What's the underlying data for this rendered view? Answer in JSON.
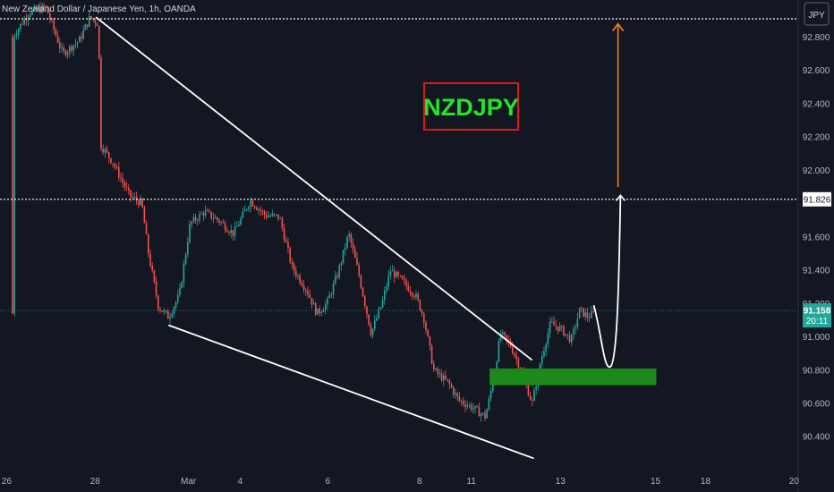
{
  "chart_data": {
    "type": "candlestick",
    "title": "New Zealand Dollar / Japanese Yen, 1h, OANDA",
    "currency_button": "JPY",
    "instrument_label": "NZDJPY",
    "y_ticks": [
      "92.800",
      "92.600",
      "92.400",
      "92.200",
      "92.000",
      "91.600",
      "91.400",
      "91.200",
      "91.000",
      "90.800",
      "90.600",
      "90.400"
    ],
    "x_ticks": [
      "26",
      "28",
      "Mar",
      "4",
      "6",
      "8",
      "11",
      "13",
      "15",
      "18",
      "20"
    ],
    "ylim": [
      90.24,
      92.98
    ],
    "levels": {
      "top": 92.91,
      "target": 91.826,
      "target_label": "91.826",
      "current": 91.158,
      "current_label": "91.158",
      "countdown": "20:11"
    },
    "demand_zone": {
      "low": 90.71,
      "high": 90.81
    },
    "pattern": "falling wedge",
    "upper_trendline": [
      [
        0.115,
        92.92
      ],
      [
        0.638,
        90.86
      ]
    ],
    "lower_trendline": [
      [
        0.202,
        91.07
      ],
      [
        0.64,
        90.27
      ]
    ],
    "projection": [
      [
        0.712,
        91.19
      ],
      [
        0.732,
        90.82
      ],
      [
        0.744,
        91.85
      ]
    ],
    "target_arrow": {
      "x": 0.741,
      "from": 91.9,
      "to": 92.88
    },
    "path_anchors": [
      [
        0.015,
        92.8
      ],
      [
        0.035,
        92.95
      ],
      [
        0.055,
        92.98
      ],
      [
        0.075,
        92.7
      ],
      [
        0.095,
        92.78
      ],
      [
        0.108,
        92.92
      ],
      [
        0.118,
        92.88
      ],
      [
        0.121,
        92.15
      ],
      [
        0.135,
        92.05
      ],
      [
        0.155,
        91.85
      ],
      [
        0.17,
        91.8
      ],
      [
        0.178,
        91.5
      ],
      [
        0.19,
        91.18
      ],
      [
        0.202,
        91.12
      ],
      [
        0.215,
        91.25
      ],
      [
        0.228,
        91.68
      ],
      [
        0.245,
        91.75
      ],
      [
        0.262,
        91.7
      ],
      [
        0.28,
        91.62
      ],
      [
        0.3,
        91.82
      ],
      [
        0.318,
        91.73
      ],
      [
        0.335,
        91.72
      ],
      [
        0.35,
        91.42
      ],
      [
        0.368,
        91.28
      ],
      [
        0.38,
        91.14
      ],
      [
        0.392,
        91.2
      ],
      [
        0.405,
        91.38
      ],
      [
        0.418,
        91.62
      ],
      [
        0.43,
        91.38
      ],
      [
        0.445,
        91.02
      ],
      [
        0.458,
        91.2
      ],
      [
        0.468,
        91.4
      ],
      [
        0.485,
        91.32
      ],
      [
        0.498,
        91.25
      ],
      [
        0.508,
        91.12
      ],
      [
        0.52,
        90.8
      ],
      [
        0.538,
        90.72
      ],
      [
        0.55,
        90.62
      ],
      [
        0.565,
        90.58
      ],
      [
        0.582,
        90.52
      ],
      [
        0.592,
        90.75
      ],
      [
        0.6,
        91.02
      ],
      [
        0.612,
        90.95
      ],
      [
        0.625,
        90.8
      ],
      [
        0.638,
        90.6
      ],
      [
        0.648,
        90.85
      ],
      [
        0.66,
        91.08
      ],
      [
        0.672,
        91.05
      ],
      [
        0.685,
        90.98
      ],
      [
        0.695,
        91.16
      ],
      [
        0.705,
        91.12
      ],
      [
        0.712,
        91.14
      ]
    ]
  }
}
